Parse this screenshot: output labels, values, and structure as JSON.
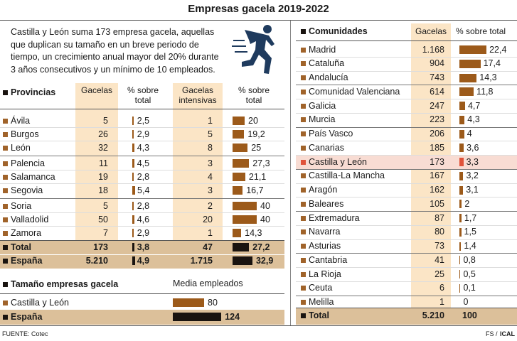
{
  "title": "Empresas gacela 2019-2022",
  "intro": [
    "Castilla y León suma 173 empresa gacela, aquellas",
    "que duplican su tamaño en un breve periodo de",
    "tiempo, un crecimiento anual mayor del 20% durante",
    "3 años consecutivos y un mínimo de 10 empleados."
  ],
  "provincias": {
    "headers": [
      "Provincias",
      "Gacelas",
      "% sobre total",
      "Gacelas intensivas",
      "% sobre total"
    ],
    "bar_color": "#9c5a1a",
    "total_bar_color": "#1a1410",
    "rows": [
      {
        "name": "Ávila",
        "gacelas": 5,
        "pct": {
          "value": 2.5,
          "label": "2,5"
        },
        "intensivas": 1,
        "pct_intensivas": 20
      },
      {
        "name": "Burgos",
        "gacelas": 26,
        "pct": {
          "value": 2.9,
          "label": "2,9"
        },
        "intensivas": 5,
        "pct_intensivas": {
          "value": 19.2,
          "label": "19,2"
        }
      },
      {
        "name": "León",
        "gacelas": 32,
        "pct": {
          "value": 4.3,
          "label": "4,3"
        },
        "intensivas": 8,
        "pct_intensivas": 25
      },
      {
        "name": "Palencia",
        "gacelas": 11,
        "pct": {
          "value": 4.5,
          "label": "4,5"
        },
        "intensivas": 3,
        "pct_intensivas": {
          "value": 27.3,
          "label": "27,3"
        }
      },
      {
        "name": "Salamanca",
        "gacelas": 19,
        "pct": {
          "value": 2.8,
          "label": "2,8"
        },
        "intensivas": 4,
        "pct_intensivas": {
          "value": 21.1,
          "label": "21,1"
        }
      },
      {
        "name": "Segovia",
        "gacelas": 18,
        "pct": {
          "value": 5.4,
          "label": "5,4"
        },
        "intensivas": 3,
        "pct_intensivas": {
          "value": 16.7,
          "label": "16,7"
        }
      },
      {
        "name": "Soria",
        "gacelas": 5,
        "pct": {
          "value": 2.8,
          "label": "2,8"
        },
        "intensivas": 2,
        "pct_intensivas": 40
      },
      {
        "name": "Valladolid",
        "gacelas": 50,
        "pct": {
          "value": 4.6,
          "label": "4,6"
        },
        "intensivas": 20,
        "pct_intensivas": 40
      },
      {
        "name": "Zamora",
        "gacelas": 7,
        "pct": {
          "value": 2.9,
          "label": "2,9"
        },
        "intensivas": 1,
        "pct_intensivas": {
          "value": 14.3,
          "label": "14,3"
        }
      }
    ],
    "totals": [
      {
        "name": "Total",
        "gacelas": 173,
        "pct": {
          "value": 3.8,
          "label": "3,8"
        },
        "intensivas": 47,
        "pct_intensivas": {
          "value": 27.2,
          "label": "27,2"
        }
      },
      {
        "name": "España",
        "gacelas": {
          "value": 5210,
          "label": "5.210"
        },
        "pct": {
          "value": 4.9,
          "label": "4,9"
        },
        "intensivas": {
          "value": 1715,
          "label": "1.715"
        },
        "pct_intensivas": {
          "value": 32.9,
          "label": "32,9"
        }
      }
    ]
  },
  "tamano": {
    "title": "Tamaño empresas gacela",
    "header": "Media empleados",
    "rows": [
      {
        "name": "Castilla y León",
        "value": 80,
        "color": "#9c5a1a"
      },
      {
        "name": "España",
        "value": 124,
        "color": "#1a1410"
      }
    ]
  },
  "comunidades": {
    "headers": [
      "Comunidades",
      "Gacelas",
      "% sobre total"
    ],
    "bar_color": "#9c5a1a",
    "rows": [
      {
        "name": "Madrid",
        "gacelas": {
          "value": 1168,
          "label": "1.168"
        },
        "pct": {
          "value": 22.4,
          "label": "22,4"
        }
      },
      {
        "name": "Cataluña",
        "gacelas": 904,
        "pct": {
          "value": 17.4,
          "label": "17,4"
        }
      },
      {
        "name": "Andalucía",
        "gacelas": 743,
        "pct": {
          "value": 14.3,
          "label": "14,3"
        }
      },
      {
        "name": "Comunidad Valenciana",
        "gacelas": 614,
        "pct": {
          "value": 11.8,
          "label": "11,8"
        }
      },
      {
        "name": "Galicia",
        "gacelas": 247,
        "pct": {
          "value": 4.7,
          "label": "4,7"
        }
      },
      {
        "name": "Murcia",
        "gacelas": 223,
        "pct": {
          "value": 4.3,
          "label": "4,3"
        }
      },
      {
        "name": "País Vasco",
        "gacelas": 206,
        "pct": 4
      },
      {
        "name": "Canarias",
        "gacelas": 185,
        "pct": {
          "value": 3.6,
          "label": "3,6"
        }
      },
      {
        "name": "Castilla y León",
        "gacelas": 173,
        "pct": {
          "value": 3.3,
          "label": "3,3"
        },
        "color": "#e0533a"
      },
      {
        "name": "Castilla-La Mancha",
        "gacelas": 167,
        "pct": {
          "value": 3.2,
          "label": "3,2"
        }
      },
      {
        "name": "Aragón",
        "gacelas": 162,
        "pct": {
          "value": 3.1,
          "label": "3,1"
        }
      },
      {
        "name": "Baleares",
        "gacelas": 105,
        "pct": 2
      },
      {
        "name": "Extremadura",
        "gacelas": 87,
        "pct": {
          "value": 1.7,
          "label": "1,7"
        }
      },
      {
        "name": "Navarra",
        "gacelas": 80,
        "pct": {
          "value": 1.5,
          "label": "1,5"
        }
      },
      {
        "name": "Asturias",
        "gacelas": 73,
        "pct": {
          "value": 1.4,
          "label": "1,4"
        }
      },
      {
        "name": "Cantabria",
        "gacelas": 41,
        "pct": {
          "value": 0.8,
          "label": "0,8"
        }
      },
      {
        "name": "La Rioja",
        "gacelas": 25,
        "pct": {
          "value": 0.5,
          "label": "0,5"
        }
      },
      {
        "name": "Ceuta",
        "gacelas": 6,
        "pct": {
          "value": 0.1,
          "label": "0,1"
        }
      },
      {
        "name": "Melilla",
        "gacelas": 1,
        "pct": 0
      }
    ],
    "total": {
      "name": "Total",
      "gacelas": {
        "value": 5210,
        "label": "5.210"
      },
      "pct": 100
    }
  },
  "footer": {
    "source": "FUENTE: Cotec",
    "credit": [
      "FS /",
      "ICAL"
    ]
  }
}
